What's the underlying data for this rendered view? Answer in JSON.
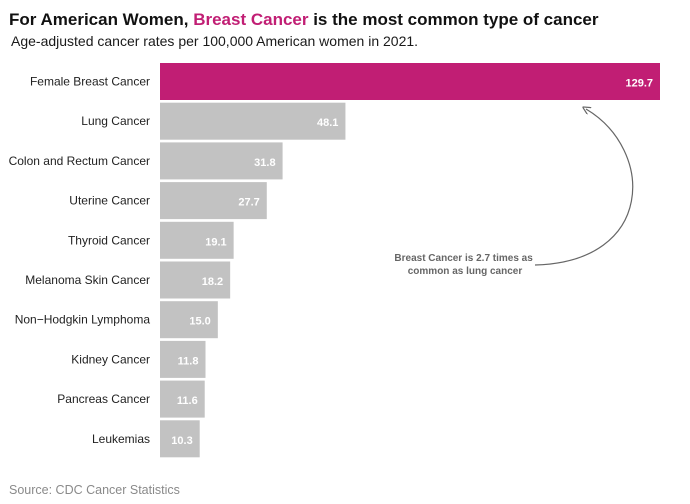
{
  "title": {
    "prefix": "For American Women, ",
    "highlight": "Breast Cancer",
    "suffix": " is the most common type of cancer"
  },
  "subtitle": "Age-adjusted cancer rates per 100,000 American women in 2021.",
  "source": "Source: CDC Cancer Statistics",
  "colors": {
    "highlight": "#c11e74",
    "bar": "#c2c2c2",
    "annotation": "#666666"
  },
  "chart_data": {
    "type": "bar",
    "orientation": "horizontal",
    "categories": [
      "Female Breast Cancer",
      "Lung Cancer",
      "Colon and Rectum Cancer",
      "Uterine Cancer",
      "Thyroid Cancer",
      "Melanoma Skin Cancer",
      "Non−Hodgkin Lymphoma",
      "Kidney Cancer",
      "Pancreas Cancer",
      "Leukemias"
    ],
    "values": [
      129.7,
      48.1,
      31.8,
      27.7,
      19.1,
      18.2,
      15.0,
      11.8,
      11.6,
      10.3
    ],
    "value_labels": [
      "129.7",
      "48.1",
      "31.8",
      "27.7",
      "19.1",
      "18.2",
      "15.0",
      "11.8",
      "11.6",
      "10.3"
    ],
    "highlight_index": 0,
    "grid": false,
    "annotation": {
      "lines": [
        "Breast Cancer is 2.7 times as",
        "common as lung cancer"
      ]
    }
  }
}
